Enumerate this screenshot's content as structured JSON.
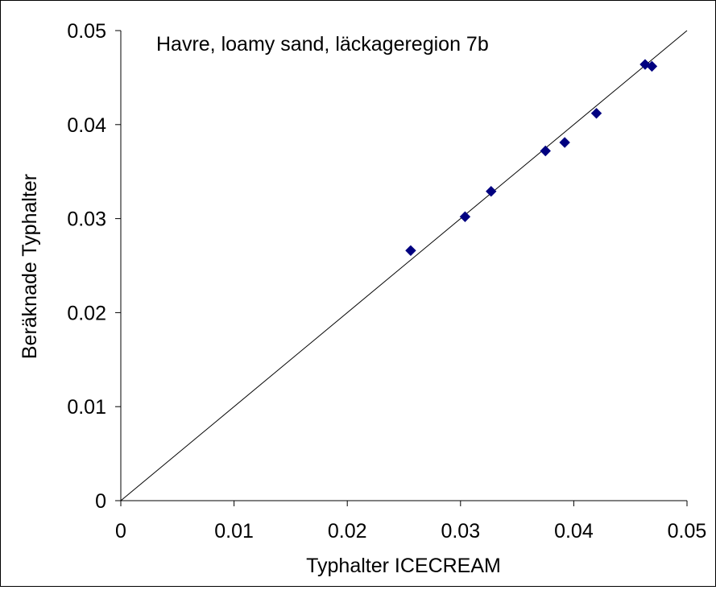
{
  "chart_data": {
    "type": "scatter",
    "title": "Havre, loamy sand, läckageregion 7b",
    "xlabel": "Typhalter ICECREAM",
    "ylabel": "Beräknade Typhalter",
    "xlim": [
      0,
      0.05
    ],
    "ylim": [
      0,
      0.05
    ],
    "x_ticks": [
      "0",
      "0.01",
      "0.02",
      "0.03",
      "0.04",
      "0.05"
    ],
    "y_ticks": [
      "0",
      "0.01",
      "0.02",
      "0.03",
      "0.04",
      "0.05"
    ],
    "grid": false,
    "legend": "none",
    "marker": "diamond",
    "marker_color": "#000080",
    "reference_line": {
      "type": "1:1",
      "x": [
        0,
        0.05
      ],
      "y": [
        0,
        0.05
      ]
    },
    "points": [
      {
        "x": 0.0256,
        "y": 0.0266
      },
      {
        "x": 0.0304,
        "y": 0.0302
      },
      {
        "x": 0.0327,
        "y": 0.0329
      },
      {
        "x": 0.0375,
        "y": 0.0372
      },
      {
        "x": 0.0392,
        "y": 0.0381
      },
      {
        "x": 0.042,
        "y": 0.0412
      },
      {
        "x": 0.0463,
        "y": 0.0464
      },
      {
        "x": 0.0469,
        "y": 0.0462
      }
    ]
  }
}
